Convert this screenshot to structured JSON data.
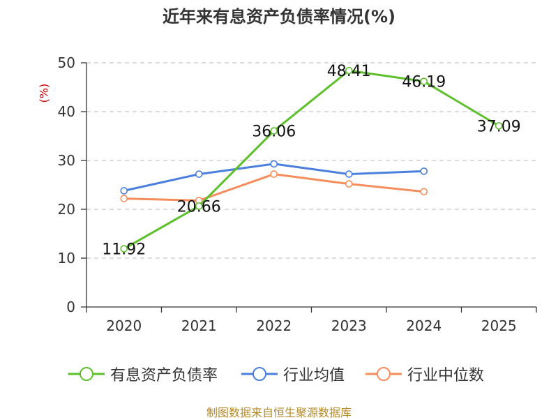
{
  "title": "近年来有息资产负债率情况(%)",
  "y_unit": "(%)",
  "source": "制图数据来自恒生聚源数据库",
  "chart_data": {
    "type": "line",
    "title": "近年来有息资产负债率情况(%)",
    "ylabel": "(%)",
    "xlabel": "",
    "categories": [
      "2020",
      "2021",
      "2022",
      "2023",
      "2024",
      "2025"
    ],
    "ylim": [
      0,
      50
    ],
    "yticks": [
      0,
      10,
      20,
      30,
      40,
      50
    ],
    "grid": true,
    "legend_position": "bottom",
    "series": [
      {
        "name": "有息资产负债率",
        "color": "#5dc02b",
        "values": [
          11.92,
          20.66,
          36.06,
          48.41,
          46.19,
          37.09
        ],
        "labels": [
          "11.92",
          "20.66",
          "36.06",
          "48.41",
          "46.19",
          "37.09"
        ]
      },
      {
        "name": "行业均值",
        "color": "#4a7fde",
        "values": [
          23.8,
          27.2,
          29.3,
          27.2,
          27.8,
          null
        ]
      },
      {
        "name": "行业中位数",
        "color": "#f58d5c",
        "values": [
          22.2,
          21.8,
          27.2,
          25.2,
          23.6,
          null
        ]
      }
    ]
  }
}
